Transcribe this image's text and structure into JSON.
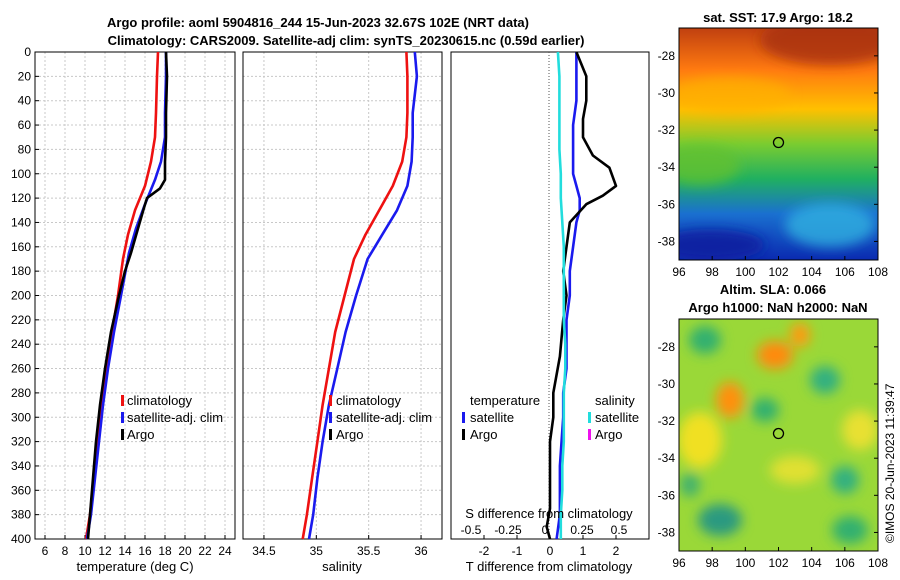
{
  "titles": {
    "line1": "Argo profile: aoml 5904816_244 15-Jun-2023 32.67S 102E (NRT data)",
    "line2": "Climatology: CARS2009. Satellite-adj clim: synTS_20230615.nc (0.59d earlier)",
    "sst": "sat. SST: 17.9 Argo: 18.2",
    "sla1": "Altim. SLA: 0.066",
    "sla2": "Argo h1000: NaN h2000: NaN"
  },
  "watermark": "©IMOS 20-Jun-2023 11:39:47",
  "colors": {
    "red": "#ee1111",
    "blue": "#1a1aee",
    "black": "#000000",
    "cyan": "#22dddd",
    "magenta": "#ee11ee",
    "grid": "#c8c8c8",
    "dotted": "#555555"
  },
  "chart_data": [
    {
      "id": "temperature",
      "type": "line",
      "xlabel": "temperature (deg C)",
      "ylabel": "",
      "xlim": [
        5,
        25
      ],
      "ylim": [
        400,
        0
      ],
      "xticks": [
        6,
        8,
        10,
        12,
        14,
        16,
        18,
        20,
        22,
        24
      ],
      "yticks": [
        0,
        20,
        40,
        60,
        80,
        100,
        120,
        140,
        160,
        180,
        200,
        220,
        240,
        260,
        280,
        300,
        320,
        340,
        360,
        380,
        400
      ],
      "grid": true,
      "legend": {
        "position": "middle-right",
        "entries": [
          "climatology",
          "satellite-adj. clim",
          "Argo"
        ]
      },
      "series": [
        {
          "name": "climatology",
          "color": "#ee1111",
          "x": [
            17.3,
            17.2,
            17.1,
            17.0,
            16.6,
            16.0,
            15.0,
            14.3,
            13.8,
            13.3,
            12.7,
            12.2,
            11.7,
            11.3,
            10.9,
            10.5,
            10.1
          ],
          "y": [
            0,
            20,
            50,
            70,
            90,
            110,
            130,
            150,
            170,
            200,
            230,
            260,
            290,
            320,
            350,
            380,
            400
          ]
        },
        {
          "name": "satellite-adj. clim",
          "color": "#1a1aee",
          "x": [
            18.1,
            18.1,
            18.0,
            18.0,
            17.6,
            17.0,
            16.0,
            15.1,
            14.4,
            13.6,
            12.9,
            12.3,
            11.8,
            11.4,
            11.0,
            10.6,
            10.2
          ],
          "y": [
            0,
            20,
            50,
            70,
            90,
            105,
            125,
            145,
            165,
            200,
            230,
            260,
            290,
            320,
            350,
            380,
            400
          ]
        },
        {
          "name": "Argo",
          "color": "#000000",
          "x": [
            18.1,
            18.2,
            18.1,
            18.1,
            18.0,
            18.0,
            17.5,
            16.2,
            15.9,
            15.3,
            14.6,
            14.0,
            13.4,
            12.6,
            12.0,
            11.5,
            11.1,
            10.7,
            10.3
          ],
          "y": [
            0,
            20,
            50,
            70,
            90,
            105,
            112,
            120,
            128,
            145,
            165,
            180,
            200,
            230,
            260,
            290,
            320,
            360,
            400
          ]
        }
      ]
    },
    {
      "id": "salinity",
      "type": "line",
      "xlabel": "salinity",
      "ylabel": "",
      "xlim": [
        34.3,
        36.2
      ],
      "ylim": [
        400,
        0
      ],
      "xticks": [
        34.5,
        35,
        35.5,
        36
      ],
      "xticklabels": [
        "34.5",
        "35",
        "35.5",
        "36"
      ],
      "grid": true,
      "legend": {
        "position": "middle-right",
        "entries": [
          "climatology",
          "satellite-adj. clim",
          "Argo"
        ]
      },
      "series": [
        {
          "name": "climatology",
          "color": "#ee1111",
          "x": [
            35.86,
            35.87,
            35.87,
            35.86,
            35.82,
            35.73,
            35.6,
            35.47,
            35.36,
            35.27,
            35.18,
            35.12,
            35.06,
            35.01,
            34.96,
            34.91,
            34.87
          ],
          "y": [
            0,
            20,
            50,
            70,
            90,
            110,
            130,
            150,
            170,
            200,
            230,
            260,
            290,
            320,
            350,
            380,
            400
          ]
        },
        {
          "name": "satellite-adj. clim",
          "color": "#1a1aee",
          "x": [
            35.94,
            35.96,
            35.92,
            35.92,
            35.91,
            35.87,
            35.77,
            35.63,
            35.49,
            35.38,
            35.28,
            35.2,
            35.12,
            35.06,
            35.01,
            34.97,
            34.93
          ],
          "y": [
            0,
            20,
            50,
            70,
            90,
            110,
            130,
            150,
            170,
            200,
            230,
            260,
            290,
            320,
            350,
            380,
            400
          ]
        }
      ]
    },
    {
      "id": "difference",
      "type": "line",
      "xlabel": "T difference from climatology",
      "xlabel2": "S difference from climatology",
      "xlim": [
        -3,
        3
      ],
      "ylim": [
        400,
        0
      ],
      "xticks": [
        -2,
        -1,
        0,
        1,
        2
      ],
      "xticklabels": [
        "-2",
        "-1",
        "0",
        "1",
        "2"
      ],
      "xticks2": [
        -0.5,
        -0.25,
        0,
        0.25,
        0.5
      ],
      "xticklabels2": [
        "-0.5",
        "-0.25",
        "0",
        "0.25",
        "0.5"
      ],
      "legend": {
        "position": "middle",
        "left_title": "temperature",
        "right_title": "salinity",
        "left_entries": [
          "satellite",
          "Argo"
        ],
        "right_entries": [
          "satellite",
          "Argo"
        ]
      },
      "series": [
        {
          "name": "temperature satellite",
          "color": "#1a1aee",
          "x": [
            0.8,
            0.8,
            0.8,
            0.7,
            0.7,
            0.7,
            0.8,
            0.9,
            0.9,
            0.8,
            0.7,
            0.6,
            0.6,
            0.5,
            0.5,
            0.5,
            0.4,
            0.4,
            0.3,
            0.3,
            0.2
          ],
          "y": [
            0,
            20,
            40,
            60,
            80,
            100,
            110,
            120,
            130,
            140,
            160,
            180,
            200,
            220,
            240,
            260,
            280,
            300,
            340,
            380,
            400
          ]
        },
        {
          "name": "temperature Argo",
          "color": "#000000",
          "x": [
            0.8,
            1.1,
            1.1,
            1.0,
            1.0,
            1.3,
            1.8,
            2.0,
            1.6,
            1.1,
            0.6,
            0.5,
            0.4,
            0.5,
            0.4,
            0.3,
            0.1,
            0.1,
            0.0,
            0.0,
            0.0,
            0.0,
            -0.1,
            0.0
          ],
          "y": [
            0,
            20,
            40,
            55,
            70,
            85,
            95,
            110,
            118,
            125,
            140,
            160,
            180,
            200,
            220,
            250,
            280,
            300,
            320,
            340,
            360,
            375,
            390,
            400
          ]
        },
        {
          "name": "salinity satellite",
          "color": "#22dddd",
          "x": [
            0.06,
            0.07,
            0.07,
            0.07,
            0.07,
            0.08,
            0.08,
            0.09,
            0.1,
            0.1,
            0.1,
            0.1,
            0.11,
            0.11,
            0.1,
            0.1,
            0.1,
            0.09,
            0.09,
            0.08,
            0.08
          ],
          "y": [
            0,
            20,
            40,
            60,
            80,
            100,
            120,
            140,
            160,
            180,
            200,
            220,
            240,
            260,
            280,
            300,
            320,
            340,
            360,
            380,
            400
          ]
        }
      ]
    },
    {
      "id": "sst_map",
      "type": "heatmap",
      "title": "sat. SST: 17.9 Argo: 18.2",
      "xlim": [
        96,
        108
      ],
      "ylim": [
        -39,
        -26.5
      ],
      "xticks": [
        96,
        98,
        100,
        102,
        104,
        106,
        108
      ],
      "yticks": [
        -28,
        -30,
        -32,
        -34,
        -36,
        -38
      ],
      "marker": {
        "lon": 102,
        "lat": -32.67
      }
    },
    {
      "id": "sla_map",
      "type": "heatmap",
      "title": "Altim. SLA: 0.066",
      "xlim": [
        96,
        108
      ],
      "ylim": [
        -39,
        -26.5
      ],
      "xticks": [
        96,
        98,
        100,
        102,
        104,
        106,
        108
      ],
      "yticks": [
        -28,
        -30,
        -32,
        -34,
        -36,
        -38
      ],
      "marker": {
        "lon": 102,
        "lat": -32.67
      }
    }
  ]
}
